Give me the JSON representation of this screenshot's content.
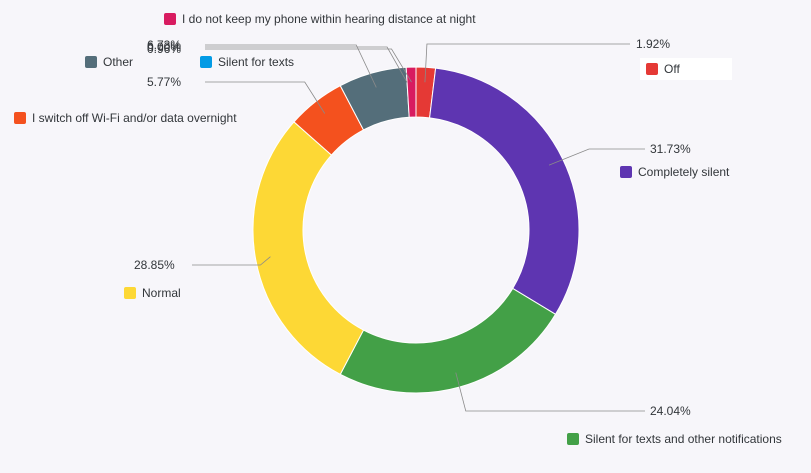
{
  "chart_data": {
    "type": "pie",
    "variant": "donut",
    "categories": [
      "Off",
      "Completely silent",
      "Silent for texts and other notifications",
      "Normal",
      "I switch off Wi-Fi and/or data overnight",
      "Other",
      "Silent for texts",
      "I do not keep my phone within hearing distance at night"
    ],
    "values": [
      1.92,
      31.73,
      24.04,
      28.85,
      5.77,
      6.73,
      0.0,
      0.96
    ],
    "value_labels": [
      "1.92%",
      "31.73%",
      "24.04%",
      "28.85%",
      "5.77%",
      "6.73%",
      "0.00%",
      "0.96%"
    ],
    "colors": [
      "#e53935",
      "#5e35b1",
      "#43a047",
      "#fdd835",
      "#f4511e",
      "#546e7a",
      "#039be5",
      "#d81b60"
    ],
    "legend_placement": "beside-slices"
  }
}
